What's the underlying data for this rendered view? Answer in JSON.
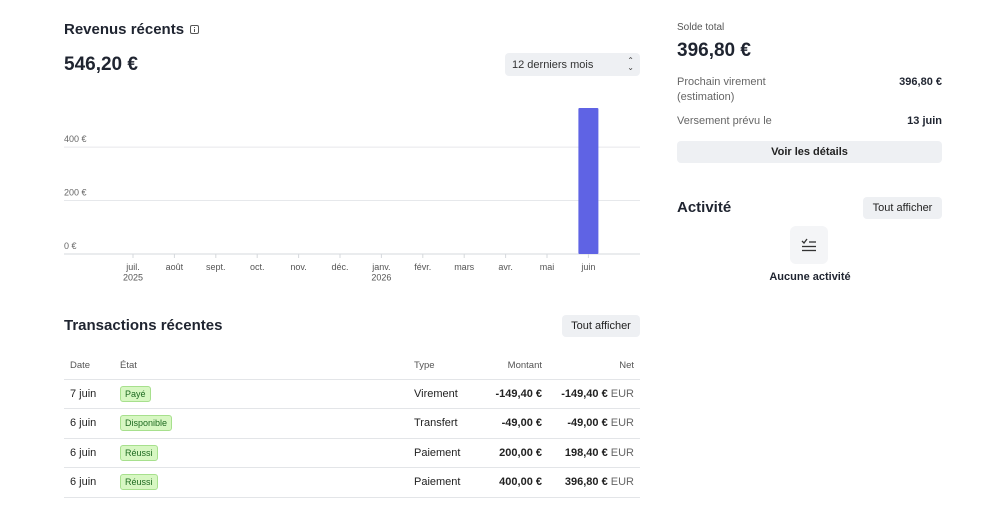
{
  "revenue": {
    "title": "Revenus récents",
    "amount": "546,20 €",
    "period": "12 derniers mois"
  },
  "chart_data": {
    "type": "bar",
    "categories": [
      "juil. 2025",
      "août",
      "sept.",
      "oct.",
      "nov.",
      "déc.",
      "janv. 2026",
      "févr.",
      "mars",
      "avr.",
      "mai",
      "juin"
    ],
    "category_labels": [
      [
        "juil.",
        "2025"
      ],
      [
        "août"
      ],
      [
        "sept."
      ],
      [
        "oct."
      ],
      [
        "nov."
      ],
      [
        "déc."
      ],
      [
        "janv.",
        "2026"
      ],
      [
        "févr."
      ],
      [
        "mars"
      ],
      [
        "avr."
      ],
      [
        "mai"
      ],
      [
        "juin"
      ]
    ],
    "values": [
      0,
      0,
      0,
      0,
      0,
      0,
      0,
      0,
      0,
      0,
      0,
      546.2
    ],
    "y_ticks": [
      0,
      200,
      400
    ],
    "y_tick_labels": [
      "0 €",
      "200 €",
      "400 €"
    ],
    "ylim": [
      0,
      546.2
    ],
    "grid": true,
    "bar_color": "#5f63e4"
  },
  "transactions": {
    "title": "Transactions récentes",
    "view_all": "Tout afficher",
    "columns": {
      "date": "Date",
      "state": "État",
      "type": "Type",
      "amount": "Montant",
      "net": "Net"
    },
    "rows": [
      {
        "date": "7 juin",
        "state": "Payé",
        "type": "Virement",
        "amount": "-149,40 €",
        "net": "-149,40 €",
        "currency": "EUR"
      },
      {
        "date": "6 juin",
        "state": "Disponible",
        "type": "Transfert",
        "amount": "-49,00 €",
        "net": "-49,00 €",
        "currency": "EUR"
      },
      {
        "date": "6 juin",
        "state": "Réussi",
        "type": "Paiement",
        "amount": "200,00 €",
        "net": "198,40 €",
        "currency": "EUR"
      },
      {
        "date": "6 juin",
        "state": "Réussi",
        "type": "Paiement",
        "amount": "400,00 €",
        "net": "396,80 €",
        "currency": "EUR"
      }
    ]
  },
  "balance": {
    "label": "Solde total",
    "amount": "396,80 €",
    "next_transfer_label": "Prochain virement (estimation)",
    "next_transfer_value": "396,80 €",
    "payout_label": "Versement prévu le",
    "payout_value": "13 juin",
    "details_button": "Voir les détails"
  },
  "activity": {
    "title": "Activité",
    "view_all": "Tout afficher",
    "empty_icon": "checklist-icon",
    "empty_text": "Aucune activité"
  },
  "colors": {
    "accent": "#5f63e4",
    "badge_bg": "#d7f7c2",
    "badge_text": "#1e6a20"
  }
}
